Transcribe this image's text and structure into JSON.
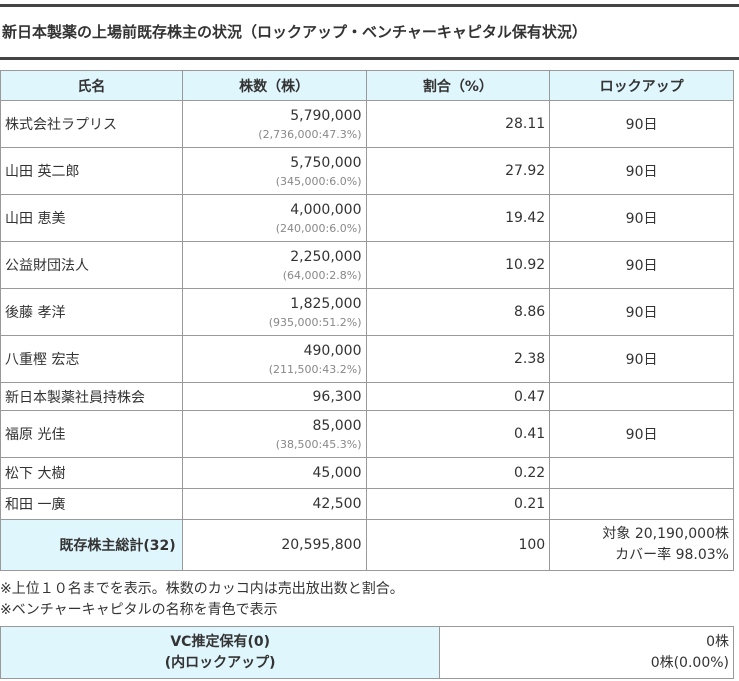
{
  "title": "新日本製薬の上場前既存株主の状況（ロックアップ・ベンチャーキャピタル保有状況）",
  "table": {
    "headers": [
      "氏名",
      "株数（株）",
      "割合（%）",
      "ロックアップ"
    ],
    "rows": [
      {
        "name": "株式会社ラプリス",
        "shares": "5,790,000",
        "sold": "(2,736,000:47.3%)",
        "ratio": "28.11",
        "lockup": "90日"
      },
      {
        "name": "山田 英二郎",
        "shares": "5,750,000",
        "sold": "(345,000:6.0%)",
        "ratio": "27.92",
        "lockup": "90日"
      },
      {
        "name": "山田 恵美",
        "shares": "4,000,000",
        "sold": "(240,000:6.0%)",
        "ratio": "19.42",
        "lockup": "90日"
      },
      {
        "name": "公益財団法人",
        "shares": "2,250,000",
        "sold": "(64,000:2.8%)",
        "ratio": "10.92",
        "lockup": "90日"
      },
      {
        "name": "後藤 孝洋",
        "shares": "1,825,000",
        "sold": "(935,000:51.2%)",
        "ratio": "8.86",
        "lockup": "90日"
      },
      {
        "name": "八重樫 宏志",
        "shares": "490,000",
        "sold": "(211,500:43.2%)",
        "ratio": "2.38",
        "lockup": "90日"
      },
      {
        "name": "新日本製薬社員持株会",
        "shares": "96,300",
        "sold": "",
        "ratio": "0.47",
        "lockup": ""
      },
      {
        "name": "福原 光佳",
        "shares": "85,000",
        "sold": "(38,500:45.3%)",
        "ratio": "0.41",
        "lockup": "90日"
      },
      {
        "name": "松下 大樹",
        "shares": "45,000",
        "sold": "",
        "ratio": "0.22",
        "lockup": ""
      },
      {
        "name": "和田 一廣",
        "shares": "42,500",
        "sold": "",
        "ratio": "0.21",
        "lockup": ""
      }
    ],
    "total": {
      "label": "既存株主総計(32)",
      "shares": "20,595,800",
      "ratio": "100",
      "lockup_target": "対象 20,190,000株",
      "lockup_cover": "カバー率 98.03%"
    }
  },
  "notes": [
    "※上位１０名までを表示。株数のカッコ内は売出放出数と割合。",
    "※ベンチャーキャピタルの名称を青色で表示"
  ],
  "vc": {
    "label_line1": "VC推定保有(0)",
    "label_line2": "(内ロックアップ)",
    "value_line1": "0株",
    "value_line2": "0株(0.00%)"
  },
  "colors": {
    "header_bg": "#e0f6fd",
    "border": "#999999",
    "title_rule": "#444444",
    "sub_text": "#888888"
  }
}
